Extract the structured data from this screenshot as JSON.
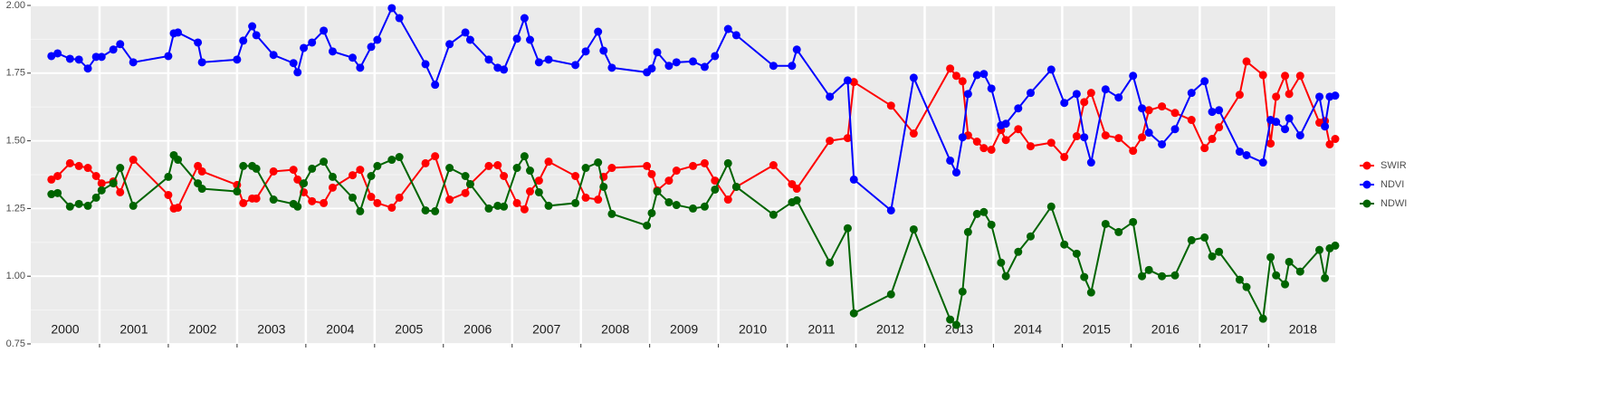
{
  "chart_data": {
    "type": "line",
    "x": [
      2000.3,
      2000.39,
      2000.57,
      2000.7,
      2000.83,
      2000.95,
      2001.03,
      2001.2,
      2001.3,
      2001.49,
      2002.0,
      2002.08,
      2002.14,
      2002.43,
      2002.49,
      2003.0,
      2003.09,
      2003.22,
      2003.28,
      2003.53,
      2003.82,
      2003.88,
      2003.97,
      2004.09,
      2004.26,
      2004.39,
      2004.68,
      2004.79,
      2004.95,
      2005.04,
      2005.25,
      2005.36,
      2005.74,
      2005.88,
      2006.09,
      2006.32,
      2006.39,
      2006.66,
      2006.79,
      2006.88,
      2007.07,
      2007.18,
      2007.26,
      2007.39,
      2007.53,
      2007.92,
      2008.07,
      2008.25,
      2008.33,
      2008.45,
      2008.96,
      2009.03,
      2009.11,
      2009.28,
      2009.39,
      2009.63,
      2009.8,
      2009.95,
      2010.14,
      2010.26,
      2010.8,
      2011.07,
      2011.14,
      2011.62,
      2011.88,
      2011.97,
      2012.51,
      2012.84,
      2013.37,
      2013.46,
      2013.55,
      2013.63,
      2013.76,
      2013.86,
      2013.97,
      2014.11,
      2014.18,
      2014.36,
      2014.54,
      2014.84,
      2015.03,
      2015.21,
      2015.32,
      2015.42,
      2015.63,
      2015.82,
      2016.03,
      2016.16,
      2016.26,
      2016.45,
      2016.64,
      2016.88,
      2017.07,
      2017.18,
      2017.28,
      2017.58,
      2017.68,
      2017.92,
      2018.03,
      2018.11,
      2018.24,
      2018.3,
      2018.46,
      2018.74,
      2018.82,
      2018.89,
      2018.97
    ],
    "series": [
      {
        "name": "SWIR",
        "color": "#ff0000",
        "values": [
          1.357,
          1.37,
          1.417,
          1.407,
          1.4,
          1.37,
          1.343,
          1.35,
          1.31,
          1.43,
          1.3,
          1.25,
          1.253,
          1.407,
          1.387,
          1.337,
          1.27,
          1.287,
          1.287,
          1.387,
          1.393,
          1.357,
          1.31,
          1.277,
          1.27,
          1.327,
          1.373,
          1.393,
          1.293,
          1.27,
          1.253,
          1.29,
          1.417,
          1.443,
          1.283,
          1.307,
          1.34,
          1.407,
          1.41,
          1.37,
          1.27,
          1.247,
          1.313,
          1.353,
          1.423,
          1.37,
          1.29,
          1.283,
          1.367,
          1.4,
          1.407,
          1.377,
          1.317,
          1.353,
          1.39,
          1.407,
          1.417,
          1.353,
          1.283,
          1.33,
          1.41,
          1.34,
          1.323,
          1.5,
          1.51,
          1.717,
          1.63,
          1.527,
          1.767,
          1.74,
          1.72,
          1.52,
          1.497,
          1.473,
          1.467,
          1.54,
          1.503,
          1.543,
          1.48,
          1.493,
          1.44,
          1.517,
          1.643,
          1.677,
          1.52,
          1.51,
          1.463,
          1.513,
          1.613,
          1.627,
          1.603,
          1.577,
          1.473,
          1.507,
          1.55,
          1.67,
          1.793,
          1.743,
          1.49,
          1.663,
          1.74,
          1.673,
          1.74,
          1.567,
          1.573,
          1.487,
          1.507
        ]
      },
      {
        "name": "NDVI",
        "color": "#0000ff",
        "values": [
          1.813,
          1.823,
          1.803,
          1.8,
          1.767,
          1.81,
          1.81,
          1.837,
          1.857,
          1.79,
          1.813,
          1.897,
          1.9,
          1.863,
          1.79,
          1.8,
          1.87,
          1.923,
          1.89,
          1.817,
          1.787,
          1.753,
          1.843,
          1.863,
          1.907,
          1.83,
          1.807,
          1.77,
          1.847,
          1.873,
          1.99,
          1.953,
          1.783,
          1.707,
          1.857,
          1.9,
          1.873,
          1.8,
          1.77,
          1.763,
          1.877,
          1.953,
          1.873,
          1.79,
          1.8,
          1.78,
          1.83,
          1.903,
          1.833,
          1.77,
          1.753,
          1.767,
          1.827,
          1.777,
          1.79,
          1.793,
          1.773,
          1.813,
          1.913,
          1.89,
          1.777,
          1.777,
          1.837,
          1.663,
          1.723,
          1.357,
          1.243,
          1.733,
          1.427,
          1.383,
          1.513,
          1.673,
          1.743,
          1.747,
          1.693,
          1.557,
          1.563,
          1.62,
          1.677,
          1.763,
          1.64,
          1.673,
          1.513,
          1.42,
          1.69,
          1.66,
          1.74,
          1.62,
          1.53,
          1.487,
          1.543,
          1.677,
          1.72,
          1.607,
          1.613,
          1.46,
          1.447,
          1.42,
          1.577,
          1.57,
          1.543,
          1.583,
          1.52,
          1.663,
          1.553,
          1.663,
          1.667
        ]
      },
      {
        "name": "NDWI",
        "color": "#006400",
        "values": [
          1.303,
          1.307,
          1.257,
          1.267,
          1.26,
          1.29,
          1.317,
          1.343,
          1.4,
          1.26,
          1.367,
          1.447,
          1.43,
          1.343,
          1.323,
          1.313,
          1.407,
          1.407,
          1.397,
          1.283,
          1.267,
          1.257,
          1.343,
          1.397,
          1.423,
          1.367,
          1.29,
          1.24,
          1.37,
          1.407,
          1.43,
          1.44,
          1.243,
          1.24,
          1.4,
          1.37,
          1.34,
          1.25,
          1.26,
          1.257,
          1.4,
          1.443,
          1.39,
          1.31,
          1.26,
          1.27,
          1.4,
          1.42,
          1.33,
          1.23,
          1.187,
          1.233,
          1.313,
          1.273,
          1.263,
          1.25,
          1.257,
          1.32,
          1.417,
          1.33,
          1.227,
          1.273,
          1.28,
          1.05,
          1.177,
          0.863,
          0.933,
          1.173,
          0.84,
          0.82,
          0.943,
          1.163,
          1.23,
          1.237,
          1.19,
          1.05,
          1.0,
          1.09,
          1.147,
          1.257,
          1.117,
          1.083,
          0.997,
          0.94,
          1.193,
          1.163,
          1.2,
          1.0,
          1.023,
          1.0,
          1.003,
          1.133,
          1.143,
          1.073,
          1.09,
          0.987,
          0.96,
          0.843,
          1.07,
          1.003,
          0.97,
          1.053,
          1.017,
          1.097,
          0.993,
          1.103,
          1.113
        ]
      }
    ],
    "xlim": [
      2000,
      2018.97
    ],
    "xticks": [
      2001,
      2002,
      2003,
      2004,
      2005,
      2006,
      2007,
      2008,
      2009,
      2010,
      2011,
      2012,
      2013,
      2014,
      2015,
      2016,
      2017,
      2018
    ],
    "ylim": [
      0.75,
      2.0
    ],
    "yticks": [
      {
        "value": 0.75,
        "label": "0.75"
      },
      {
        "value": 1.0,
        "label": "1.00"
      },
      {
        "value": 1.25,
        "label": "1.25"
      },
      {
        "value": 1.5,
        "label": "1.50"
      },
      {
        "value": 1.75,
        "label": "1.75"
      },
      {
        "value": 2.0,
        "label": "2.00"
      }
    ],
    "yminorticks": [
      0.875,
      1.125,
      1.375,
      1.625,
      1.875
    ],
    "annotations": [
      {
        "text": "2000",
        "x": 2000.5,
        "y": 0.8
      },
      {
        "text": "2001",
        "x": 2001.5,
        "y": 0.8
      },
      {
        "text": "2002",
        "x": 2002.5,
        "y": 0.8
      },
      {
        "text": "2003",
        "x": 2003.5,
        "y": 0.8
      },
      {
        "text": "2004",
        "x": 2004.5,
        "y": 0.8
      },
      {
        "text": "2005",
        "x": 2005.5,
        "y": 0.8
      },
      {
        "text": "2006",
        "x": 2006.5,
        "y": 0.8
      },
      {
        "text": "2007",
        "x": 2007.5,
        "y": 0.8
      },
      {
        "text": "2008",
        "x": 2008.5,
        "y": 0.8
      },
      {
        "text": "2009",
        "x": 2009.5,
        "y": 0.8
      },
      {
        "text": "2010",
        "x": 2010.5,
        "y": 0.8
      },
      {
        "text": "2011",
        "x": 2011.5,
        "y": 0.8
      },
      {
        "text": "2012",
        "x": 2012.5,
        "y": 0.8
      },
      {
        "text": "2013",
        "x": 2013.5,
        "y": 0.8
      },
      {
        "text": "2014",
        "x": 2014.5,
        "y": 0.8
      },
      {
        "text": "2015",
        "x": 2015.5,
        "y": 0.8
      },
      {
        "text": "2016",
        "x": 2016.5,
        "y": 0.8
      },
      {
        "text": "2017",
        "x": 2017.5,
        "y": 0.8
      },
      {
        "text": "2018",
        "x": 2018.5,
        "y": 0.8
      }
    ],
    "grid": true,
    "legend": "right"
  }
}
